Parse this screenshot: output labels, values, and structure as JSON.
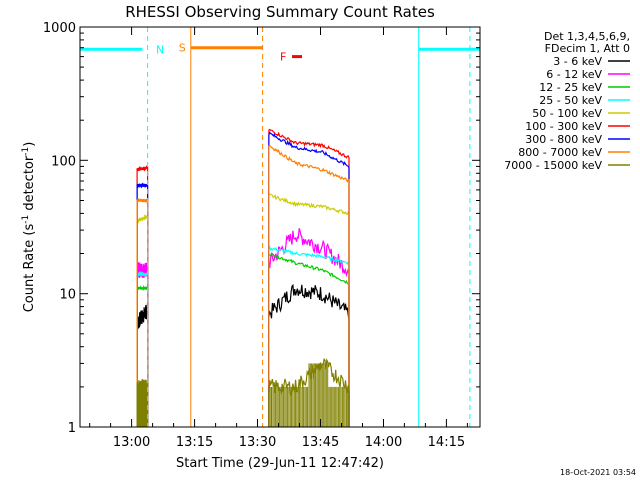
{
  "chart_data": {
    "type": "line",
    "title": "RHESSI Observing Summary Count Rates",
    "xlabel": "Start Time (29-Jun-11 12:47:42)",
    "ylabel_main": "Count Rate (s",
    "ylabel_sup1": "-1",
    "ylabel_mid": " detector",
    "ylabel_sup2": "-1",
    "ylabel_end": ")",
    "yscale": "log",
    "ylim": [
      1,
      1000
    ],
    "xlim_minutes": [
      47.7,
      143.0
    ],
    "x_ticks": [
      {
        "minute": 60,
        "label": "13:00"
      },
      {
        "minute": 75,
        "label": "13:15"
      },
      {
        "minute": 90,
        "label": "13:30"
      },
      {
        "minute": 105,
        "label": "13:45"
      },
      {
        "minute": 120,
        "label": "14:00"
      },
      {
        "minute": 135,
        "label": "14:15"
      }
    ],
    "y_ticks": [
      {
        "value": 1,
        "label": "1"
      },
      {
        "value": 10,
        "label": "10"
      },
      {
        "value": 100,
        "label": "100"
      },
      {
        "value": 1000,
        "label": "1000"
      }
    ],
    "legend_header": [
      "Det 1,3,4,5,6,9,",
      "FDecim 1, Att 0"
    ],
    "legend_position": "right",
    "series": [
      {
        "name": "3 - 6 keV",
        "color": "#000000",
        "seg1": [
          6,
          7.5
        ],
        "seg2": [
          7,
          11,
          10,
          7
        ]
      },
      {
        "name": "6 - 12 keV",
        "color": "#ff00ff",
        "seg1": [
          15,
          15
        ],
        "seg2": [
          17,
          28,
          22,
          15
        ]
      },
      {
        "name": "12 - 25 keV",
        "color": "#00cc00",
        "seg1": [
          11,
          11
        ],
        "seg2": [
          20,
          17,
          15,
          12
        ]
      },
      {
        "name": "25 - 50 keV",
        "color": "#00ffff",
        "seg1": [
          14,
          14
        ],
        "seg2": [
          22,
          20,
          19,
          17
        ]
      },
      {
        "name": "50 - 100 keV",
        "color": "#cccc00",
        "seg1": [
          35,
          38
        ],
        "seg2": [
          55,
          47,
          45,
          40
        ]
      },
      {
        "name": "100 - 300 keV",
        "color": "#ff0000",
        "seg1": [
          85,
          88
        ],
        "seg2": [
          170,
          135,
          130,
          105
        ]
      },
      {
        "name": "300 - 800 keV",
        "color": "#0000ff",
        "seg1": [
          65,
          65
        ],
        "seg2": [
          160,
          125,
          115,
          90
        ]
      },
      {
        "name": "800 - 7000 keV",
        "color": "#ff8000",
        "seg1": [
          50,
          50
        ],
        "seg2": [
          130,
          95,
          85,
          70
        ]
      },
      {
        "name": "7000 - 15000 keV",
        "color": "#808000",
        "seg1": [
          2,
          2
        ],
        "seg2": [
          2,
          2,
          3,
          2
        ]
      }
    ],
    "segments": {
      "seg1": [
        61.3,
        63.8
      ],
      "seg2": [
        92.7,
        111.8
      ]
    },
    "flag_lines": [
      {
        "label": "N",
        "color": "#00ffff",
        "start": 47.7,
        "end": 62.6,
        "y": 680,
        "v_lines": [
          {
            "minute": 63.8,
            "style": "dashed"
          },
          {
            "minute": 47.7,
            "style": "solid"
          }
        ]
      },
      {
        "label": "S",
        "color": "#ff8000",
        "start": 74.1,
        "end": 91.2,
        "y": 700,
        "v_lines": [
          {
            "minute": 74.1,
            "style": "solid"
          },
          {
            "minute": 91.2,
            "style": "dashed"
          }
        ]
      },
      {
        "label": "F",
        "color": "#ff0000",
        "start": 98.2,
        "end": 100.6,
        "y": 600,
        "v_lines": []
      },
      {
        "label": "",
        "color": "#00ffff",
        "start": 128.4,
        "end": 143.0,
        "y": 680,
        "v_lines": [
          {
            "minute": 128.4,
            "style": "solid"
          },
          {
            "minute": 140.6,
            "style": "dashed"
          }
        ]
      }
    ],
    "timestamp": "18-Oct-2021 03:54",
    "grid": false
  }
}
